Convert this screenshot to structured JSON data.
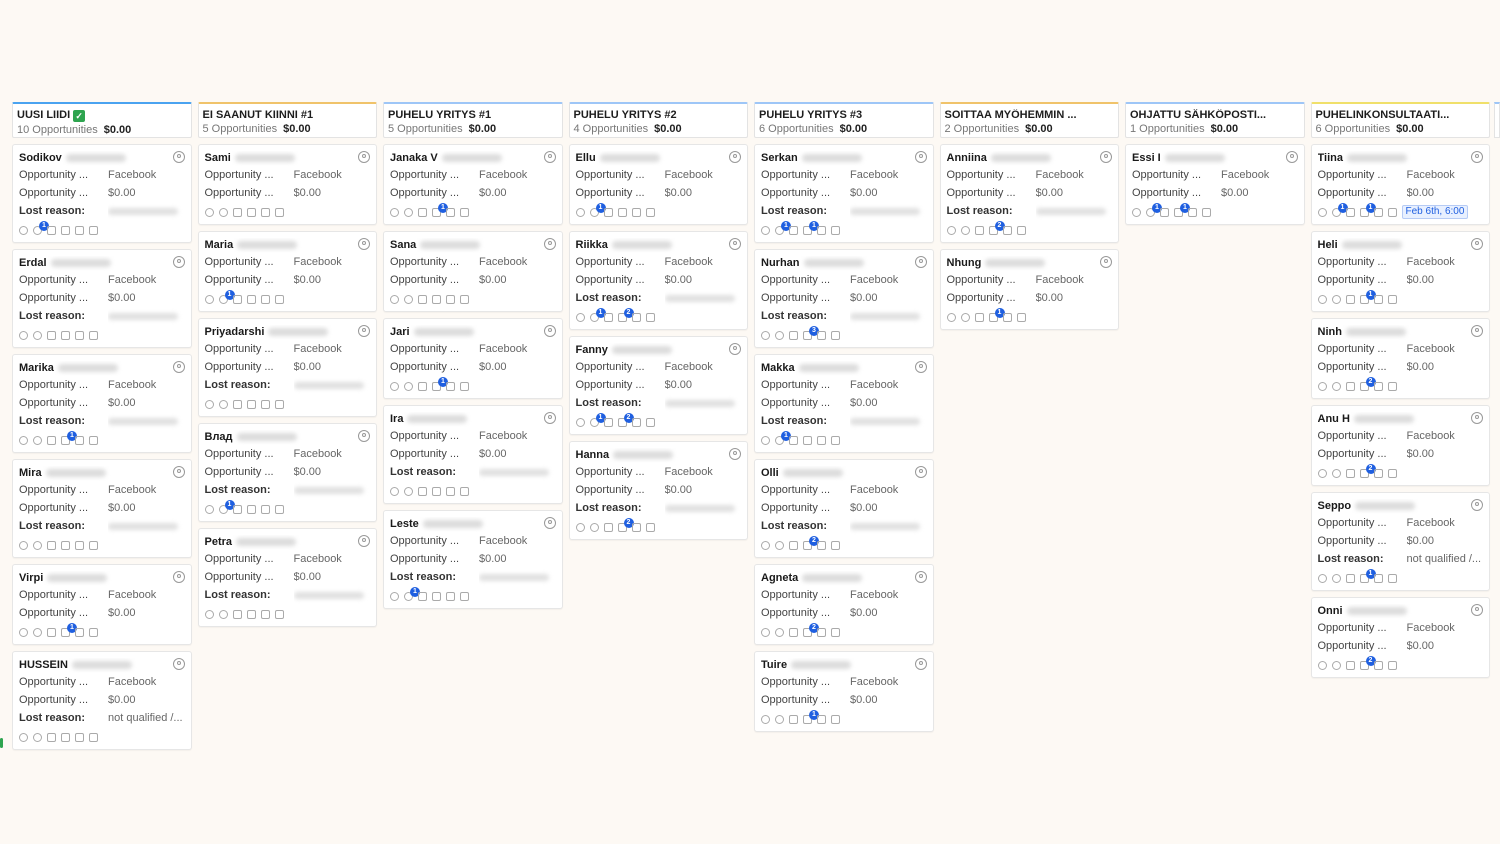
{
  "columns": [
    {
      "title": "UUSI LIIDI",
      "has_check": true,
      "count": "10 Opportunities",
      "amount": "$0.00",
      "accent": "#4aa3f0",
      "cards": [
        {
          "name": "Sodikov",
          "rows": [
            [
              "Opportunity ...",
              "Facebook"
            ],
            [
              "Opportunity ...",
              "$0.00"
            ],
            [
              "Lost reason:",
              "blur"
            ]
          ],
          "badge": {
            "pos": 1,
            "n": "1"
          }
        },
        {
          "name": "Erdal",
          "rows": [
            [
              "Opportunity ...",
              "Facebook"
            ],
            [
              "Opportunity ...",
              "$0.00"
            ],
            [
              "Lost reason:",
              "blur"
            ]
          ]
        },
        {
          "name": "Marika",
          "rows": [
            [
              "Opportunity ...",
              "Facebook"
            ],
            [
              "Opportunity ...",
              "$0.00"
            ],
            [
              "Lost reason:",
              "blur"
            ]
          ],
          "badge": {
            "pos": 3,
            "n": "1"
          }
        },
        {
          "name": "Mira",
          "rows": [
            [
              "Opportunity ...",
              "Facebook"
            ],
            [
              "Opportunity ...",
              "$0.00"
            ],
            [
              "Lost reason:",
              "blur"
            ]
          ]
        },
        {
          "name": "Virpi",
          "rows": [
            [
              "Opportunity ...",
              "Facebook"
            ],
            [
              "Opportunity ...",
              "$0.00"
            ]
          ],
          "badge": {
            "pos": 3,
            "n": "1"
          }
        },
        {
          "name": "HUSSEIN",
          "rows": [
            [
              "Opportunity ...",
              "Facebook"
            ],
            [
              "Opportunity ...",
              "$0.00"
            ],
            [
              "Lost reason:",
              "not qualified /..."
            ]
          ]
        }
      ]
    },
    {
      "title": "EI SAANUT KIINNI #1",
      "count": "5 Opportunities",
      "amount": "$0.00",
      "accent": "#f0c36a",
      "cards": [
        {
          "name": "Sami",
          "rows": [
            [
              "Opportunity ...",
              "Facebook"
            ],
            [
              "Opportunity ...",
              "$0.00"
            ]
          ]
        },
        {
          "name": "Maria",
          "rows": [
            [
              "Opportunity ...",
              "Facebook"
            ],
            [
              "Opportunity ...",
              "$0.00"
            ]
          ],
          "badge": {
            "pos": 1,
            "n": "1"
          }
        },
        {
          "name": "Priyadarshi",
          "rows": [
            [
              "Opportunity ...",
              "Facebook"
            ],
            [
              "Opportunity ...",
              "$0.00"
            ],
            [
              "Lost reason:",
              "blur"
            ]
          ]
        },
        {
          "name": "Влад",
          "rows": [
            [
              "Opportunity ...",
              "Facebook"
            ],
            [
              "Opportunity ...",
              "$0.00"
            ],
            [
              "Lost reason:",
              "blur"
            ]
          ],
          "badge": {
            "pos": 1,
            "n": "1"
          }
        },
        {
          "name": "Petra",
          "rows": [
            [
              "Opportunity ...",
              "Facebook"
            ],
            [
              "Opportunity ...",
              "$0.00"
            ],
            [
              "Lost reason:",
              "blur"
            ]
          ]
        }
      ]
    },
    {
      "title": "PUHELU YRITYS #1",
      "count": "5 Opportunities",
      "amount": "$0.00",
      "accent": "#9ec6f7",
      "cards": [
        {
          "name": "Janaka V",
          "rows": [
            [
              "Opportunity ...",
              "Facebook"
            ],
            [
              "Opportunity ...",
              "$0.00"
            ]
          ],
          "badge": {
            "pos": 3,
            "n": "1"
          }
        },
        {
          "name": "Sana",
          "rows": [
            [
              "Opportunity ...",
              "Facebook"
            ],
            [
              "Opportunity ...",
              "$0.00"
            ]
          ]
        },
        {
          "name": "Jari",
          "rows": [
            [
              "Opportunity ...",
              "Facebook"
            ],
            [
              "Opportunity ...",
              "$0.00"
            ]
          ],
          "badge": {
            "pos": 3,
            "n": "1"
          }
        },
        {
          "name": "Ira",
          "rows": [
            [
              "Opportunity ...",
              "Facebook"
            ],
            [
              "Opportunity ...",
              "$0.00"
            ],
            [
              "Lost reason:",
              "blur"
            ]
          ]
        },
        {
          "name": "Leste",
          "rows": [
            [
              "Opportunity ...",
              "Facebook"
            ],
            [
              "Opportunity ...",
              "$0.00"
            ],
            [
              "Lost reason:",
              "blur"
            ]
          ],
          "badge": {
            "pos": 1,
            "n": "1"
          }
        }
      ]
    },
    {
      "title": "PUHELU YRITYS #2",
      "count": "4 Opportunities",
      "amount": "$0.00",
      "accent": "#9ec6f7",
      "cards": [
        {
          "name": "Ellu",
          "rows": [
            [
              "Opportunity ...",
              "Facebook"
            ],
            [
              "Opportunity ...",
              "$0.00"
            ]
          ],
          "badge": {
            "pos": 1,
            "n": "1"
          }
        },
        {
          "name": "Riikka",
          "rows": [
            [
              "Opportunity ...",
              "Facebook"
            ],
            [
              "Opportunity ...",
              "$0.00"
            ],
            [
              "Lost reason:",
              "blur"
            ]
          ],
          "badge": {
            "pos": 1,
            "n": "1"
          },
          "badge2": {
            "pos": 3,
            "n": "2"
          }
        },
        {
          "name": "Fanny",
          "rows": [
            [
              "Opportunity ...",
              "Facebook"
            ],
            [
              "Opportunity ...",
              "$0.00"
            ],
            [
              "Lost reason:",
              "blur"
            ]
          ],
          "badge": {
            "pos": 1,
            "n": "1"
          },
          "badge2": {
            "pos": 3,
            "n": "2"
          }
        },
        {
          "name": "Hanna",
          "rows": [
            [
              "Opportunity ...",
              "Facebook"
            ],
            [
              "Opportunity ...",
              "$0.00"
            ],
            [
              "Lost reason:",
              "blur"
            ]
          ],
          "badge": {
            "pos": 3,
            "n": "2"
          }
        }
      ]
    },
    {
      "title": "PUHELU YRITYS #3",
      "count": "6 Opportunities",
      "amount": "$0.00",
      "accent": "#9ec6f7",
      "cards": [
        {
          "name": "Serkan",
          "rows": [
            [
              "Opportunity ...",
              "Facebook"
            ],
            [
              "Opportunity ...",
              "$0.00"
            ],
            [
              "Lost reason:",
              "blur"
            ]
          ],
          "badge": {
            "pos": 1,
            "n": "1"
          },
          "badge2": {
            "pos": 3,
            "n": "1"
          }
        },
        {
          "name": "Nurhan",
          "rows": [
            [
              "Opportunity ...",
              "Facebook"
            ],
            [
              "Opportunity ...",
              "$0.00"
            ],
            [
              "Lost reason:",
              "blur"
            ]
          ],
          "badge": {
            "pos": 3,
            "n": "3"
          }
        },
        {
          "name": "Makka",
          "rows": [
            [
              "Opportunity ...",
              "Facebook"
            ],
            [
              "Opportunity ...",
              "$0.00"
            ],
            [
              "Lost reason:",
              "blur"
            ]
          ],
          "badge": {
            "pos": 1,
            "n": "1"
          }
        },
        {
          "name": "Olli",
          "rows": [
            [
              "Opportunity ...",
              "Facebook"
            ],
            [
              "Opportunity ...",
              "$0.00"
            ],
            [
              "Lost reason:",
              "blur"
            ]
          ],
          "badge": {
            "pos": 3,
            "n": "2"
          }
        },
        {
          "name": "Agneta",
          "rows": [
            [
              "Opportunity ...",
              "Facebook"
            ],
            [
              "Opportunity ...",
              "$0.00"
            ]
          ],
          "badge": {
            "pos": 3,
            "n": "2"
          }
        },
        {
          "name": "Tuire",
          "rows": [
            [
              "Opportunity ...",
              "Facebook"
            ],
            [
              "Opportunity ...",
              "$0.00"
            ]
          ],
          "badge": {
            "pos": 3,
            "n": "1"
          }
        }
      ]
    },
    {
      "title": "SOITTAA MYÖHEMMIN ...",
      "count": "2 Opportunities",
      "amount": "$0.00",
      "accent": "#f0c36a",
      "cards": [
        {
          "name": "Anniina",
          "rows": [
            [
              "Opportunity ...",
              "Facebook"
            ],
            [
              "Opportunity ...",
              "$0.00"
            ],
            [
              "Lost reason:",
              "blur"
            ]
          ],
          "badge": {
            "pos": 3,
            "n": "2"
          }
        },
        {
          "name": "Nhung",
          "rows": [
            [
              "Opportunity ...",
              "Facebook"
            ],
            [
              "Opportunity ...",
              "$0.00"
            ]
          ],
          "badge": {
            "pos": 3,
            "n": "1"
          }
        }
      ]
    },
    {
      "title": "OHJATTU SÄHKÖPOSTI...",
      "count": "1 Opportunities",
      "amount": "$0.00",
      "accent": "#9ec6f7",
      "cards": [
        {
          "name": "Essi I",
          "rows": [
            [
              "Opportunity ...",
              "Facebook"
            ],
            [
              "Opportunity ...",
              "$0.00"
            ]
          ],
          "badge": {
            "pos": 1,
            "n": "1"
          },
          "badge2": {
            "pos": 3,
            "n": "1"
          }
        }
      ]
    },
    {
      "title": "PUHELINKONSULTAATI...",
      "count": "6 Opportunities",
      "amount": "$0.00",
      "accent": "#f0e06a",
      "cards": [
        {
          "name": "Tiina",
          "rows": [
            [
              "Opportunity ...",
              "Facebook"
            ],
            [
              "Opportunity ...",
              "$0.00"
            ]
          ],
          "badge": {
            "pos": 1,
            "n": "1"
          },
          "badge2": {
            "pos": 3,
            "n": "1"
          },
          "date": "Feb 6th, 6:00"
        },
        {
          "name": "Heli",
          "rows": [
            [
              "Opportunity ...",
              "Facebook"
            ],
            [
              "Opportunity ...",
              "$0.00"
            ]
          ],
          "badge": {
            "pos": 3,
            "n": "1"
          }
        },
        {
          "name": "Ninh",
          "rows": [
            [
              "Opportunity ...",
              "Facebook"
            ],
            [
              "Opportunity ...",
              "$0.00"
            ]
          ],
          "badge": {
            "pos": 3,
            "n": "2"
          }
        },
        {
          "name": "Anu H",
          "rows": [
            [
              "Opportunity ...",
              "Facebook"
            ],
            [
              "Opportunity ...",
              "$0.00"
            ]
          ],
          "badge": {
            "pos": 3,
            "n": "2"
          }
        },
        {
          "name": "Seppo",
          "rows": [
            [
              "Opportunity ...",
              "Facebook"
            ],
            [
              "Opportunity ...",
              "$0.00"
            ],
            [
              "Lost reason:",
              "not qualified /..."
            ]
          ],
          "badge": {
            "pos": 3,
            "n": "1"
          }
        },
        {
          "name": "Onni",
          "rows": [
            [
              "Opportunity ...",
              "Facebook"
            ],
            [
              "Opportunity ...",
              "$0.00"
            ]
          ],
          "badge": {
            "pos": 3,
            "n": "2"
          }
        }
      ]
    }
  ],
  "colors": {
    "background": "#fdf9f4",
    "badge": "#1f5fe0",
    "check": "#2ea44f"
  },
  "card_icons": [
    "phone-icon",
    "chat-icon",
    "tag-icon",
    "note-icon",
    "task-icon",
    "calendar-icon"
  ]
}
